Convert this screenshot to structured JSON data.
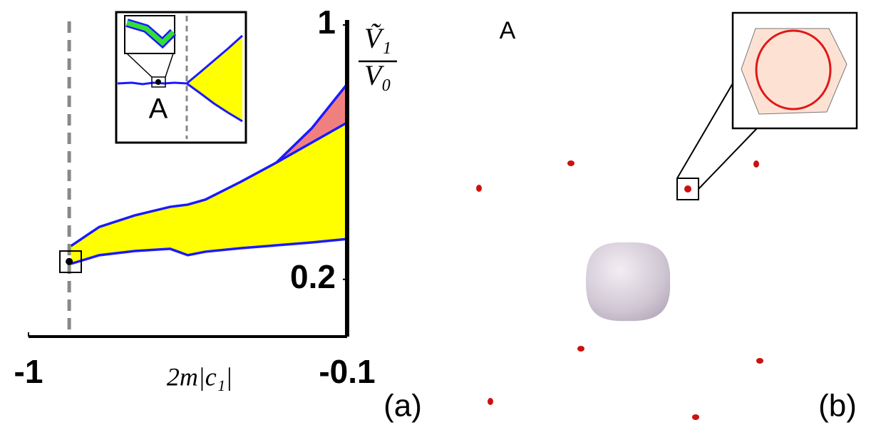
{
  "chart_data": {
    "type": "area",
    "x": [
      -0.88,
      -0.8,
      -0.7,
      -0.6,
      -0.55,
      -0.5,
      -0.4,
      -0.3,
      -0.2,
      -0.1
    ],
    "series": [
      {
        "color": "#1a1aff",
        "fill_color": "#ffff00",
        "values": [
          0.249,
          0.276,
          0.289,
          0.296,
          0.276,
          0.287,
          0.298,
          0.307,
          0.316,
          0.327
        ]
      },
      {
        "color": "#1a1aff",
        "fill_color": "#ffff00",
        "values": [
          0.305,
          0.365,
          0.401,
          0.428,
          0.435,
          0.451,
          0.507,
          0.567,
          0.63,
          0.693
        ]
      },
      {
        "color": "#1a1aff",
        "fill_color": "#f08080",
        "values": [
          null,
          null,
          null,
          null,
          null,
          null,
          null,
          0.567,
          0.675,
          0.814
        ]
      }
    ],
    "point": [
      -0.885,
      0.256
    ],
    "vline": -0.885,
    "xlim": [
      -1,
      -0.1
    ],
    "xticks": [
      -1,
      -0.1
    ],
    "ylim": [
      0.02,
      1
    ],
    "yticks": [
      0.2,
      1
    ],
    "x_label": "2m|c₁|",
    "y_label_numerator": "Ṽ₁",
    "y_label_denominator": "V₀",
    "inset_label": "A",
    "panel_label": "(a)"
  },
  "panel_b": {
    "label": "A",
    "panel_label": "(b)"
  }
}
